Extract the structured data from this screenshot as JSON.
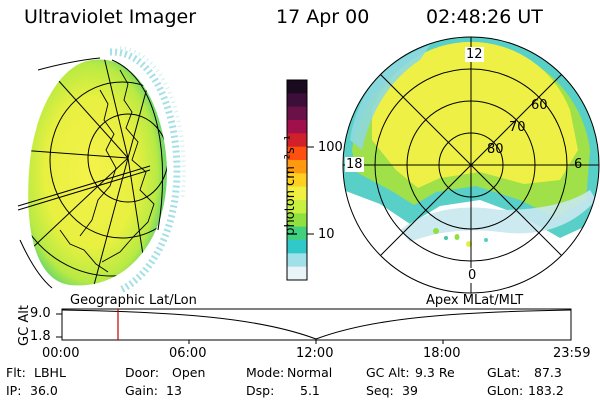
{
  "header": {
    "instrument": "Ultraviolet Imager",
    "date": "17 Apr 00",
    "time": "02:48:26 UT"
  },
  "colorbar": {
    "unit_label": "photon cm⁻²s⁻¹",
    "ticks": [
      "100",
      "10"
    ],
    "colors": [
      "#1a0a20",
      "#3b0f3a",
      "#6a1248",
      "#a0104a",
      "#d0202a",
      "#ff5010",
      "#ff9a10",
      "#ffd020",
      "#f0f040",
      "#c8f040",
      "#90e040",
      "#40d080",
      "#30c8c8",
      "#a0e0e8",
      "#e8f4f8"
    ]
  },
  "polar_plot": {
    "labels": {
      "top": "12",
      "left": "18",
      "right": "6",
      "bottom": "0"
    },
    "rings": [
      "60",
      "70",
      "80"
    ]
  },
  "projection_labels": {
    "left": "Geographic Lat/Lon",
    "right": "Apex MLat/MLT"
  },
  "altitude_plot": {
    "ylabel": "GC Alt",
    "y_ticks": [
      "9.0",
      "1.8"
    ],
    "x_ticks": [
      "00:00",
      "06:00",
      "12:00",
      "18:00",
      "23:59"
    ],
    "marker_time": "02:48",
    "marker_color": "#c00000"
  },
  "info": {
    "row1": [
      {
        "label": "Flt:",
        "value": "LBHL"
      },
      {
        "label": "Door:",
        "value": "Open"
      },
      {
        "label": "Mode:",
        "value": "Normal"
      },
      {
        "label": "GC Alt:",
        "value": "9.3 Re"
      },
      {
        "label": "GLat:",
        "value": "87.3"
      }
    ],
    "row2": [
      {
        "label": "IP:",
        "value": "36.0"
      },
      {
        "label": "Gain:",
        "value": "13"
      },
      {
        "label": "Dsp:",
        "value": "5.1"
      },
      {
        "label": "Seq:",
        "value": "39"
      },
      {
        "label": "GLon:",
        "value": "183.2"
      }
    ]
  }
}
